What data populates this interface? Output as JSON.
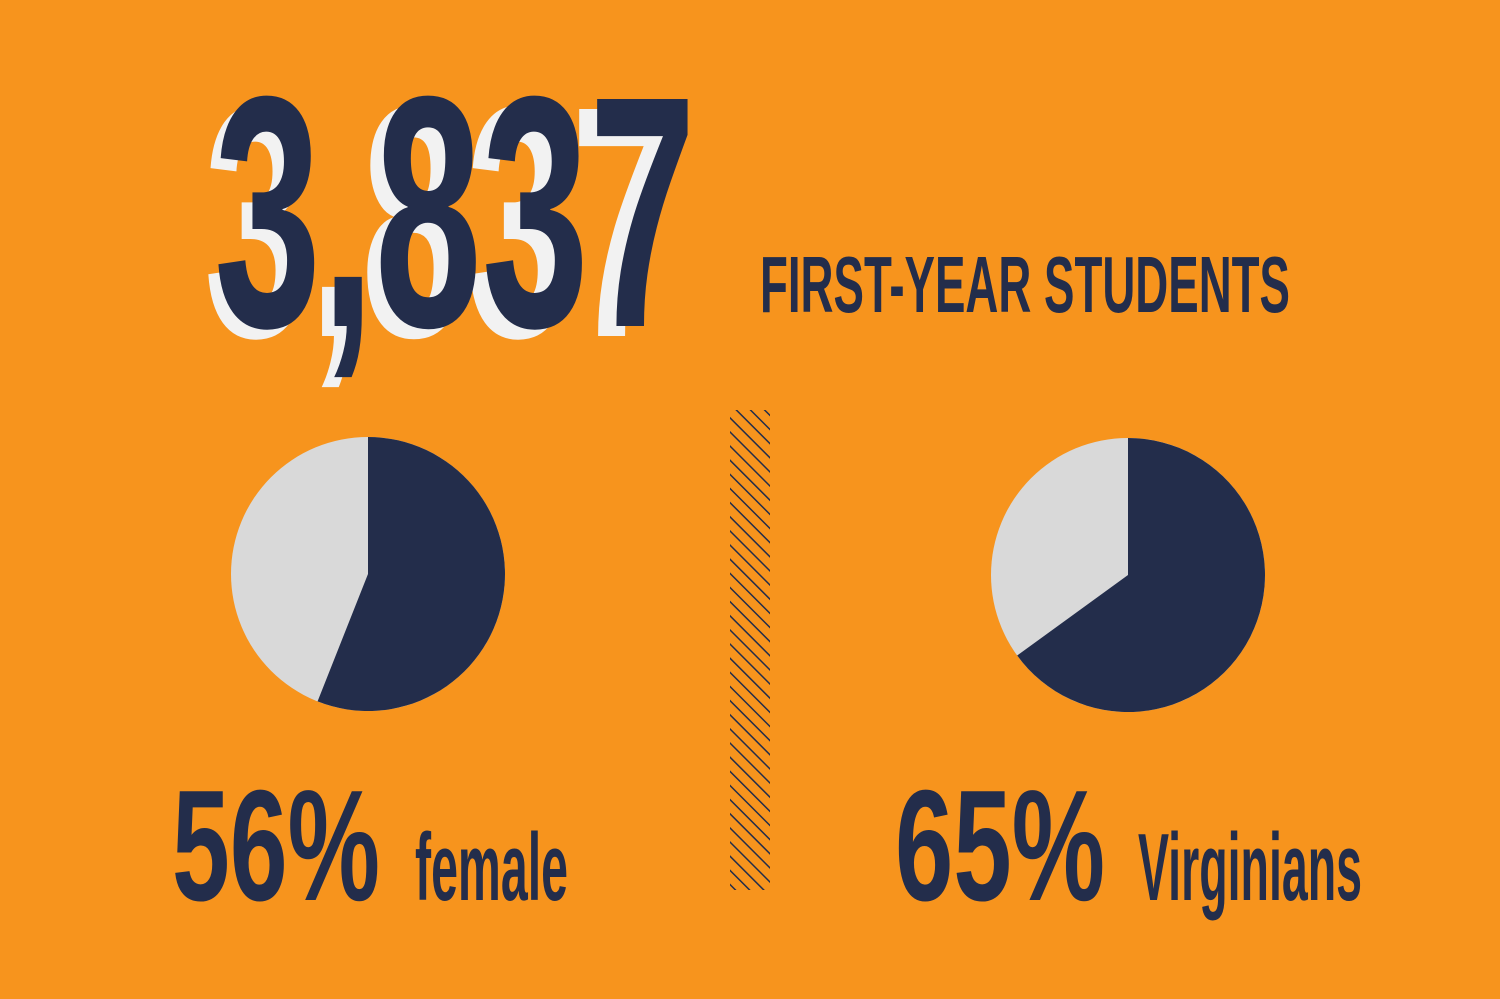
{
  "headline": {
    "number": "3,837",
    "label": "FIRST-YEAR STUDENTS"
  },
  "chart_data": [
    {
      "type": "pie",
      "categories": [
        "female"
      ],
      "values": [
        56
      ],
      "value_labels": [
        "56%"
      ],
      "colors": [
        "#232d4b"
      ],
      "rest_color": "#d9d9d9"
    },
    {
      "type": "pie",
      "categories": [
        "Virginians"
      ],
      "values": [
        65
      ],
      "value_labels": [
        "65%"
      ],
      "colors": [
        "#232d4b"
      ],
      "rest_color": "#d9d9d9"
    }
  ]
}
